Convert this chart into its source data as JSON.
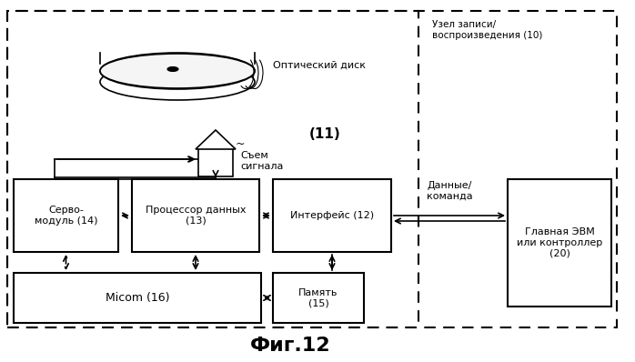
{
  "title": "Фиг.12",
  "bg_color": "#ffffff",
  "label_node10": "Узел записи/\nвоспроизведения (10)",
  "label_optical": "Оптический диск",
  "label_pickup": "Съем\nсигнала",
  "label_11": "(11)",
  "label_servo": "Серво-\nмодуль (14)",
  "label_proc": "Процессор данных\n(13)",
  "label_iface": "Интерфейс (12)",
  "label_micom": "Micom (16)",
  "label_mem": "Память\n(15)",
  "label_host": "Главная ЭВМ\nили контроллер\n(20)",
  "label_data": "Данные/\nкоманда"
}
